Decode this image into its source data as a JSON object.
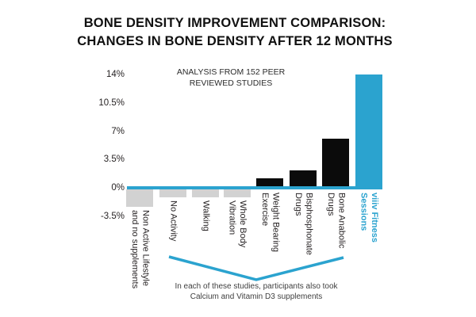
{
  "title": {
    "line1": "BONE DENSITY IMPROVEMENT COMPARISON:",
    "line2": "CHANGES IN BONE DENSITY AFTER 12 MONTHS"
  },
  "annotation": {
    "line1": "ANALYSIS FROM 152 PEER",
    "line2": "REVIEWED STUDIES"
  },
  "footnote": {
    "line1": "In each of these studies, participants also took",
    "line2": "Calcium and Vitamin D3 supplements"
  },
  "colors": {
    "accent": "#2BA3CF",
    "bar_black": "#0b0b0b",
    "bar_gray": "#d2d2d2"
  },
  "chart_data": {
    "type": "bar",
    "title": "Bone Density Improvement Comparison: Changes in Bone Density After 12 Months",
    "subtitle": "Analysis from 152 peer reviewed studies",
    "categories": [
      "Non Active Lifestyle\nand no supplements",
      "No Activity",
      "Walking",
      "Whole Body\nVibration",
      "Weight Bearing\nExercise",
      "Bisphosphonate\nDrugs",
      "Bone Anabolic\nDrugs",
      "viiiv Fitness\nSessions"
    ],
    "values": [
      -2.4,
      -1.2,
      -1.2,
      -1.2,
      1.2,
      2.2,
      6.1,
      14
    ],
    "unit": "%",
    "bar_colors": [
      "gray",
      "gray",
      "gray",
      "gray",
      "black",
      "black",
      "black",
      "accent"
    ],
    "yticks": [
      "14%",
      "10.5%",
      "7%",
      "3.5%",
      "0%",
      "-3.5%"
    ],
    "ytick_values": [
      14,
      10.5,
      7,
      3.5,
      0,
      -3.5
    ],
    "ylim": [
      -3.5,
      14
    ],
    "grid": false,
    "legend": null,
    "bracket_note_applies_to": [
      "No Activity",
      "Walking",
      "Whole Body Vibration",
      "Weight Bearing Exercise",
      "Bisphosphonate Drugs",
      "Bone Anabolic Drugs"
    ]
  }
}
